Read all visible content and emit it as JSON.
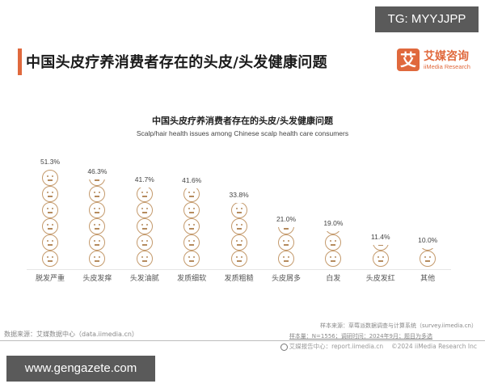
{
  "badge": {
    "tg": "TG: MYYJJPP"
  },
  "header": {
    "title": "中国头皮疗养消费者存在的头皮/头发健康问题",
    "logo": {
      "mark": "艾",
      "cn": "艾媒咨询",
      "en": "iiMedia Research"
    },
    "accent_color": "#e0693d"
  },
  "chart_data": {
    "type": "bar",
    "title": "中国头皮疗养消费者存在的头皮/头发健康问题",
    "subtitle": "Scalp/hair health issues among Chinese scalp health care consumers",
    "categories": [
      "脱发严重",
      "头皮发痒",
      "头发油腻",
      "发质细软",
      "发质粗糙",
      "头皮屑多",
      "白发",
      "头皮发红",
      "其他"
    ],
    "values": [
      51.3,
      46.3,
      41.7,
      41.6,
      33.8,
      21.0,
      19.0,
      11.4,
      10.0
    ],
    "value_labels": [
      "51.3%",
      "46.3%",
      "41.7%",
      "41.6%",
      "33.8%",
      "21.0%",
      "19.0%",
      "11.4%",
      "10.0%"
    ],
    "unit": "%",
    "xlabel": "",
    "ylabel": "",
    "ylim": [
      0,
      60
    ],
    "grid": false,
    "legend": "none",
    "style": "pictogram (face icons, ~8.5% per icon)",
    "icon_color": "#c49a6c"
  },
  "footer": {
    "source_left": "数据来源：艾媒数据中心（data.iimedia.cn）",
    "sample_source": "样本来源：草莓派数据调查与计算系统（survey.iimedia.cn）",
    "sample_size": "样本量：N=1556；调研时间：2024年9月；题目为多选",
    "report_center": "艾媒报告中心：report.iimedia.cn　 ©2024  iiMedia Research  Inc"
  },
  "watermark": {
    "text": "www.gengazete.com"
  }
}
